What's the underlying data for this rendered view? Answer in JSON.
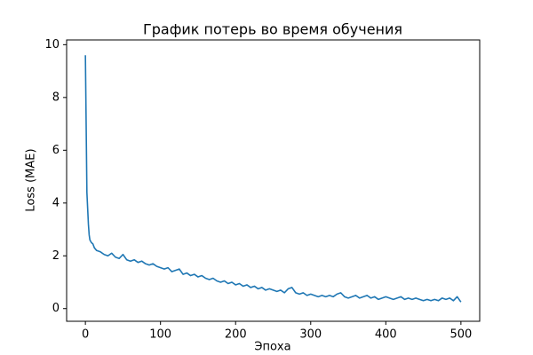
{
  "chart_data": {
    "type": "line",
    "title": "График потерь во время обучения",
    "x_label": "Эпоха",
    "y_label": "Loss (MAE)",
    "x": [
      0,
      1,
      2,
      3,
      4,
      5,
      6,
      8,
      10,
      12,
      15,
      20,
      25,
      30,
      35,
      40,
      45,
      50,
      55,
      60,
      65,
      70,
      75,
      80,
      85,
      90,
      95,
      100,
      105,
      110,
      115,
      120,
      125,
      130,
      135,
      140,
      145,
      150,
      155,
      160,
      165,
      170,
      175,
      180,
      185,
      190,
      195,
      200,
      205,
      210,
      215,
      220,
      225,
      230,
      235,
      240,
      245,
      250,
      255,
      260,
      265,
      270,
      275,
      280,
      285,
      290,
      295,
      300,
      305,
      310,
      315,
      320,
      325,
      330,
      335,
      340,
      345,
      350,
      355,
      360,
      365,
      370,
      375,
      380,
      385,
      390,
      395,
      400,
      405,
      410,
      415,
      420,
      425,
      430,
      435,
      440,
      445,
      450,
      455,
      460,
      465,
      470,
      475,
      480,
      485,
      490,
      495,
      500
    ],
    "values": [
      9.6,
      7.0,
      4.4,
      3.8,
      3.2,
      2.8,
      2.6,
      2.5,
      2.45,
      2.3,
      2.2,
      2.15,
      2.05,
      2.0,
      2.1,
      1.95,
      1.9,
      2.05,
      1.85,
      1.8,
      1.85,
      1.75,
      1.8,
      1.7,
      1.65,
      1.7,
      1.6,
      1.55,
      1.5,
      1.55,
      1.4,
      1.45,
      1.5,
      1.3,
      1.35,
      1.25,
      1.3,
      1.2,
      1.25,
      1.15,
      1.1,
      1.15,
      1.05,
      1.0,
      1.05,
      0.95,
      1.0,
      0.9,
      0.95,
      0.85,
      0.9,
      0.8,
      0.85,
      0.75,
      0.8,
      0.7,
      0.75,
      0.7,
      0.65,
      0.7,
      0.6,
      0.75,
      0.8,
      0.6,
      0.55,
      0.6,
      0.5,
      0.55,
      0.5,
      0.45,
      0.5,
      0.45,
      0.5,
      0.45,
      0.55,
      0.6,
      0.45,
      0.4,
      0.45,
      0.5,
      0.4,
      0.45,
      0.5,
      0.4,
      0.45,
      0.35,
      0.4,
      0.45,
      0.4,
      0.35,
      0.4,
      0.45,
      0.35,
      0.4,
      0.35,
      0.4,
      0.35,
      0.3,
      0.35,
      0.3,
      0.35,
      0.3,
      0.4,
      0.35,
      0.4,
      0.3,
      0.45,
      0.25
    ],
    "color": "#1f77b4",
    "xlim": [
      -25,
      525
    ],
    "ylim": [
      -0.48,
      10.18
    ],
    "xticks": [
      0,
      100,
      200,
      300,
      400,
      500
    ],
    "yticks": [
      0,
      2,
      4,
      6,
      8,
      10
    ],
    "grid": false
  }
}
